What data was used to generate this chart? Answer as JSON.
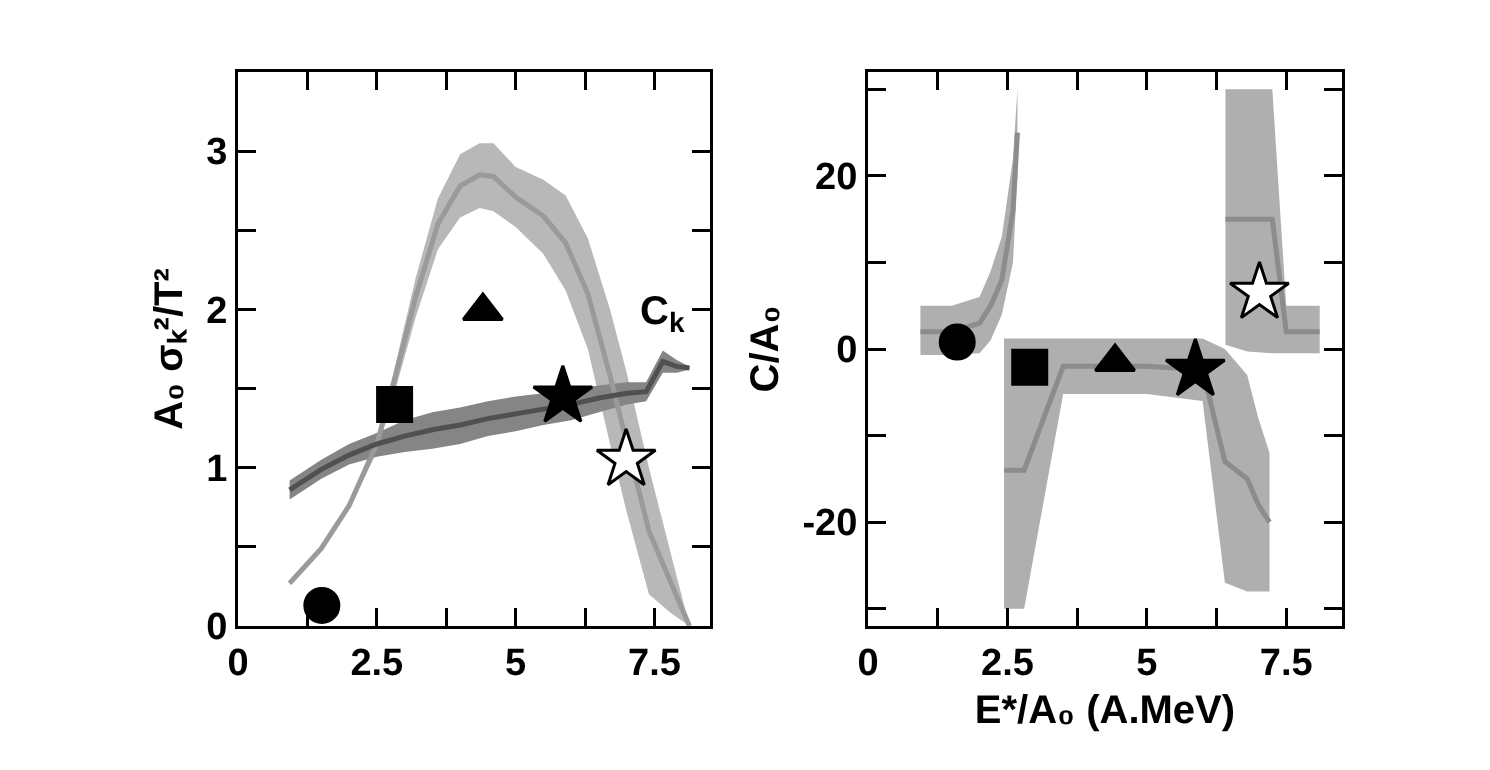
{
  "chart_data": [
    {
      "type": "scatter",
      "ylabel": "A₀ σₖ²/T²",
      "xlim": [
        0,
        8.5
      ],
      "ylim": [
        0,
        3.5
      ],
      "xticks": [
        0,
        {
          "value": 1.25,
          "label": null
        },
        2.5,
        {
          "value": 3.75,
          "label": null
        },
        5,
        {
          "value": 6.25,
          "label": null
        },
        7.5
      ],
      "yticks": [
        0,
        {
          "value": 0.5,
          "label": null
        },
        1,
        {
          "value": 1.5,
          "label": null
        },
        2,
        {
          "value": 2.5,
          "label": null
        },
        3
      ],
      "grid": false,
      "legend": false,
      "series": [
        {
          "type": "line",
          "color": "#9a9a9a",
          "x": [
            0.93,
            1.5,
            2.0,
            2.5,
            2.8,
            3.2,
            3.6,
            4.0,
            4.35,
            4.6,
            5.0,
            5.5,
            5.9,
            6.3,
            6.7,
            7.0,
            7.4,
            7.8,
            8.13
          ],
          "values": [
            0.27,
            0.49,
            0.76,
            1.15,
            1.53,
            2.08,
            2.54,
            2.78,
            2.85,
            2.84,
            2.71,
            2.59,
            2.42,
            2.1,
            1.58,
            1.16,
            0.6,
            0.27,
            0
          ],
          "lower": [
            0.26,
            0.47,
            0.74,
            1.1,
            1.45,
            1.95,
            2.38,
            2.58,
            2.64,
            2.62,
            2.52,
            2.35,
            2.12,
            1.75,
            1.15,
            0.72,
            0.2,
            0.08,
            0
          ],
          "upper": [
            0.28,
            0.5,
            0.78,
            1.2,
            1.6,
            2.2,
            2.7,
            2.98,
            3.05,
            3.05,
            2.9,
            2.82,
            2.72,
            2.45,
            2.0,
            1.6,
            1.0,
            0.45,
            0
          ]
        },
        {
          "type": "line",
          "name": "C$_{k}$",
          "color": "#505050",
          "x": [
            0.93,
            1.5,
            2.0,
            2.5,
            3.0,
            3.5,
            4.0,
            4.5,
            5.0,
            5.5,
            6.0,
            6.5,
            7.0,
            7.35,
            7.65,
            7.9,
            8.13
          ],
          "values": [
            0.86,
            0.99,
            1.08,
            1.15,
            1.2,
            1.24,
            1.27,
            1.31,
            1.34,
            1.37,
            1.4,
            1.44,
            1.47,
            1.48,
            1.67,
            1.64,
            1.63
          ],
          "lower": [
            0.8,
            0.93,
            1.02,
            1.07,
            1.1,
            1.12,
            1.15,
            1.2,
            1.23,
            1.27,
            1.3,
            1.35,
            1.4,
            1.42,
            1.6,
            1.6,
            1.62
          ],
          "upper": [
            0.92,
            1.05,
            1.15,
            1.22,
            1.3,
            1.35,
            1.38,
            1.42,
            1.45,
            1.47,
            1.5,
            1.52,
            1.54,
            1.54,
            1.74,
            1.68,
            1.64
          ]
        },
        {
          "type": "scatter",
          "marker": "circle",
          "color": "#000000",
          "x": [
            1.51
          ],
          "values": [
            0.13
          ]
        },
        {
          "type": "scatter",
          "marker": "square",
          "color": "#000000",
          "x": [
            2.82
          ],
          "values": [
            1.4
          ]
        },
        {
          "type": "scatter",
          "marker": "triangle",
          "color": "#000000",
          "x": [
            4.41
          ],
          "values": [
            1.99
          ]
        },
        {
          "type": "scatter",
          "marker": "star",
          "color": "#000000",
          "x": [
            5.85
          ],
          "values": [
            1.45
          ]
        },
        {
          "type": "scatter",
          "marker": "star",
          "color": "#ffffff",
          "x": [
            6.99
          ],
          "values": [
            1.05
          ]
        }
      ]
    },
    {
      "type": "scatter",
      "xlabel": "E*/A₀ (A.MeV)",
      "ylabel": "C/A₀",
      "xlim": [
        0,
        8.5
      ],
      "ylim": [
        -32,
        32
      ],
      "xticks": [
        0,
        {
          "value": 1.25,
          "label": null
        },
        2.5,
        {
          "value": 3.75,
          "label": null
        },
        5,
        {
          "value": 6.25,
          "label": null
        },
        7.5
      ],
      "yticks": [
        {
          "value": -30,
          "label": null
        },
        -20,
        {
          "value": -10,
          "label": null
        },
        0,
        {
          "value": 10,
          "label": null
        },
        20,
        {
          "value": 30,
          "label": null
        }
      ],
      "grid": false,
      "legend": false,
      "series": [
        {
          "type": "line",
          "color": "#8c8c8c",
          "x": [
            0.94,
            1.5,
            2.0,
            2.2,
            2.4,
            2.6,
            2.68
          ],
          "values": [
            2,
            2,
            3,
            5,
            8,
            16,
            25
          ],
          "lower": [
            -0.7,
            -0.7,
            -0.5,
            1,
            4,
            10,
            20
          ],
          "upper": [
            5,
            5,
            6,
            9,
            13,
            22,
            30
          ]
        },
        {
          "type": "line",
          "color": "#8c8c8c",
          "x": [
            2.44,
            2.8,
            3.5,
            5.0,
            6.0,
            6.4,
            6.8,
            7.0,
            7.2
          ],
          "values": [
            -14,
            -14,
            -2,
            -2,
            -2.4,
            -13,
            -15,
            -18,
            -20
          ],
          "lower": [
            -30,
            -30,
            -5.2,
            -5.2,
            -6,
            -27,
            -28,
            -28,
            -28
          ],
          "upper": [
            1.2,
            1.2,
            1.2,
            1.2,
            1.2,
            0,
            -3,
            -8,
            -12
          ]
        },
        {
          "type": "line",
          "color": "#8c8c8c",
          "x": [
            6.41,
            6.8,
            7.25,
            7.5,
            8.1
          ],
          "values": [
            15,
            15,
            15,
            2,
            2
          ],
          "lower": [
            0.5,
            -0.3,
            -0.5,
            -0.5,
            -0.5
          ],
          "upper": [
            30,
            30,
            30,
            5,
            5
          ]
        },
        {
          "type": "scatter",
          "marker": "circle",
          "color": "#000000",
          "x": [
            1.6
          ],
          "values": [
            0.8
          ]
        },
        {
          "type": "scatter",
          "marker": "square",
          "color": "#000000",
          "x": [
            2.9
          ],
          "values": [
            -2.1
          ]
        },
        {
          "type": "scatter",
          "marker": "triangle",
          "color": "#000000",
          "x": [
            4.43
          ],
          "values": [
            -1.5
          ]
        },
        {
          "type": "scatter",
          "marker": "star",
          "color": "#000000",
          "x": [
            5.87
          ],
          "values": [
            -2.4
          ]
        },
        {
          "type": "scatter",
          "marker": "star",
          "color": "#ffffff",
          "x": [
            7.02
          ],
          "values": [
            6.5
          ]
        }
      ]
    }
  ]
}
